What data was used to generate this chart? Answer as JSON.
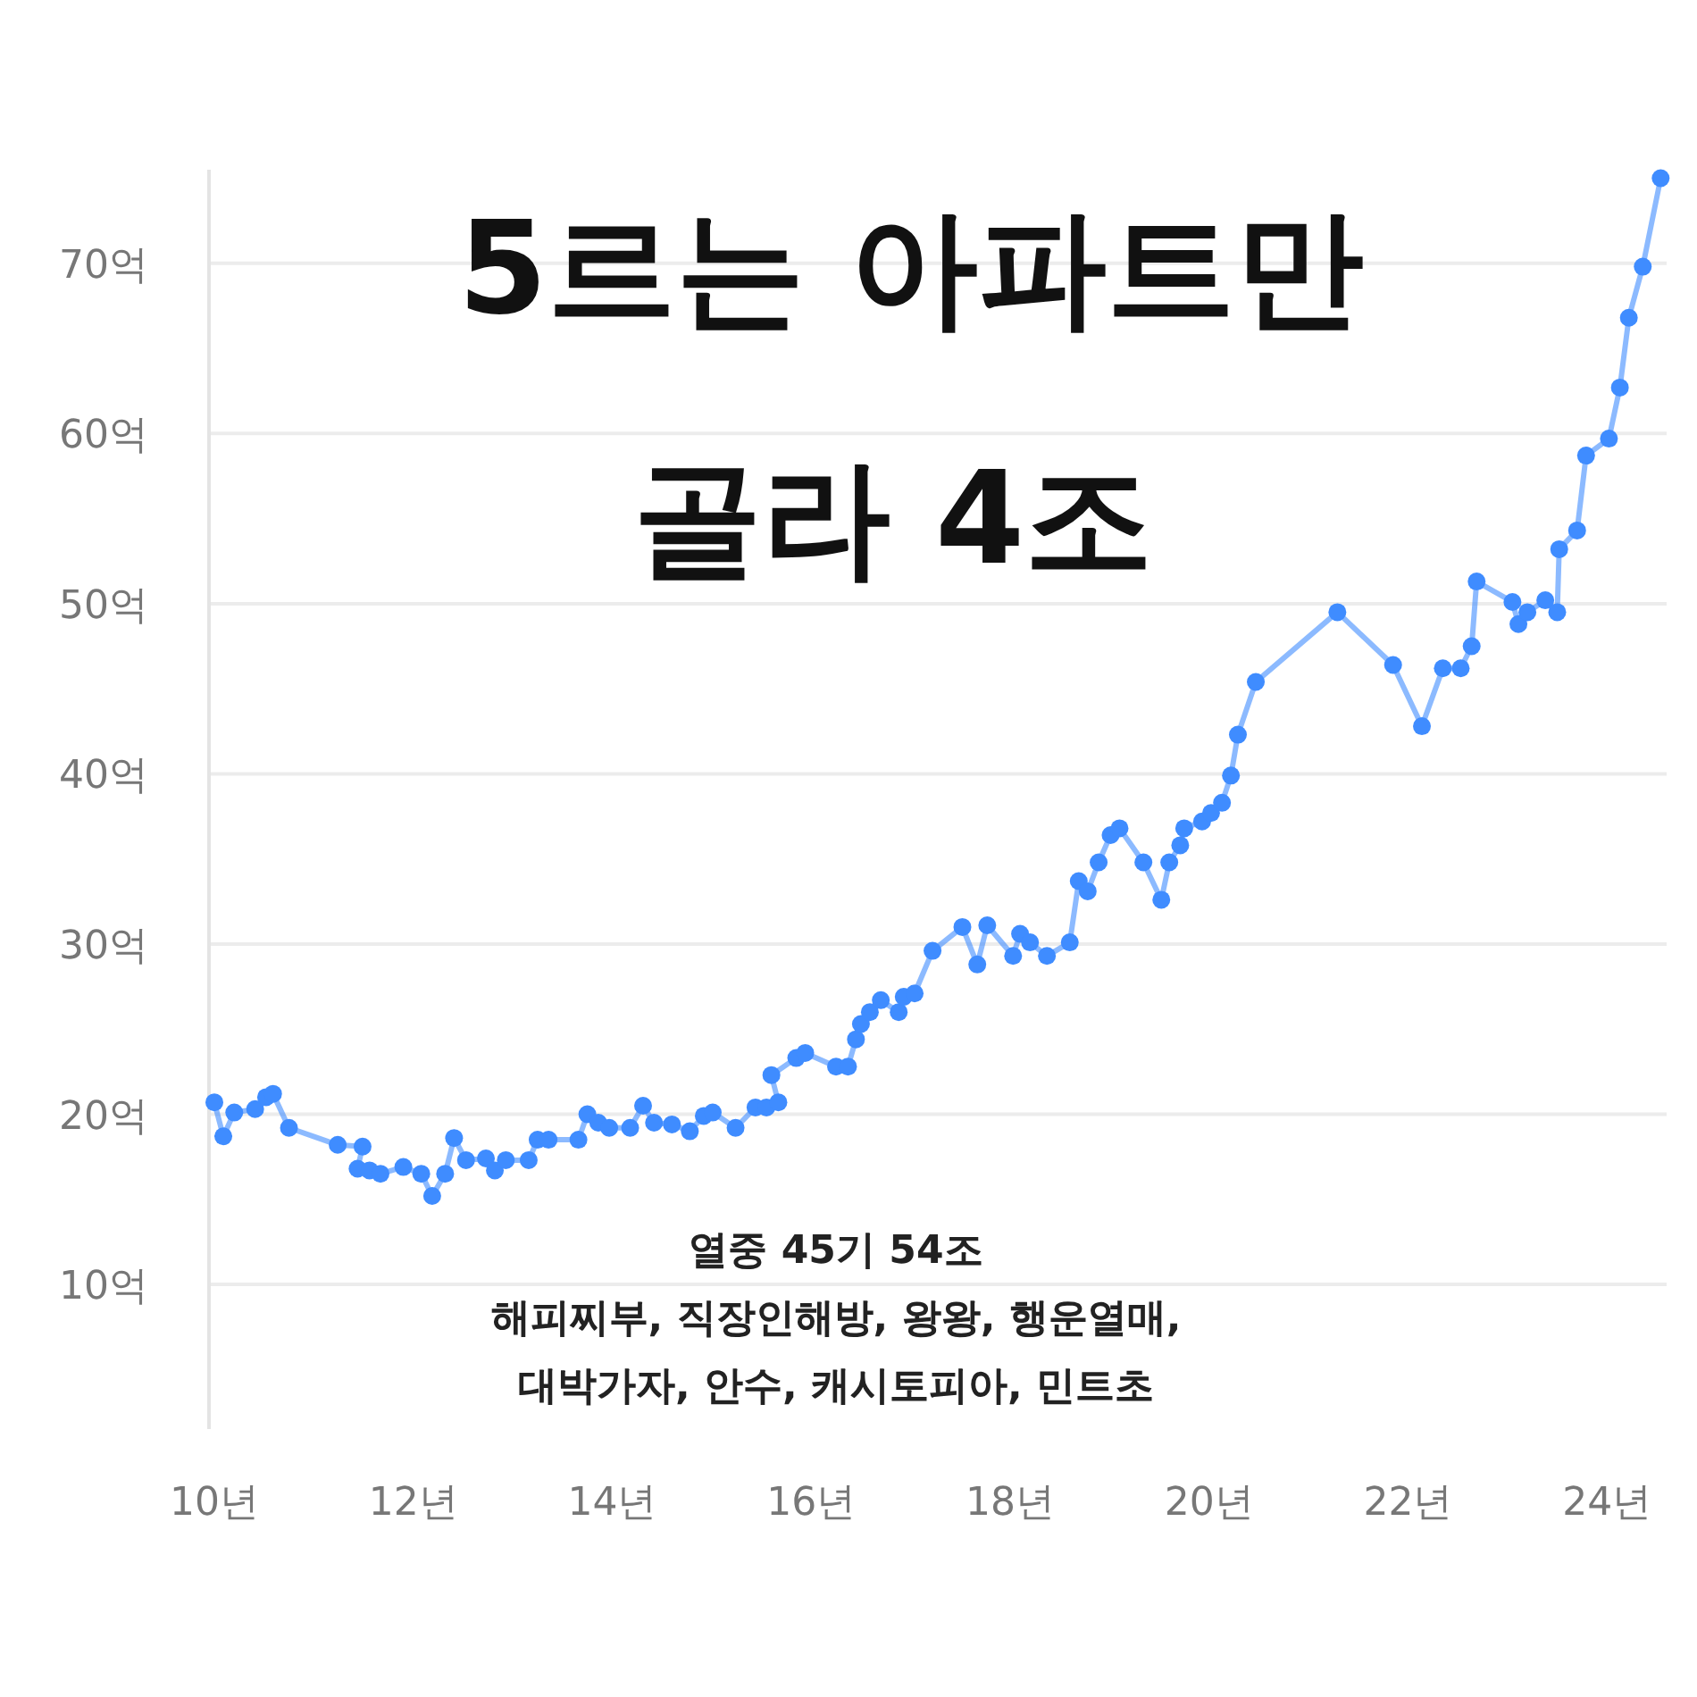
{
  "chart_data": {
    "type": "line",
    "title": "5르는 아파트만",
    "subtitle": "골라 4조",
    "annotations": [
      "열중 45기 54조",
      "해피찌부, 직장인해방, 왕왕, 행운열매,",
      "대박가자, 안수, 캐시토피아, 민트초"
    ],
    "xlim": [
      10,
      24.6
    ],
    "ylim": [
      1.5,
      75.5
    ],
    "xticks": [
      {
        "value": 10,
        "label": "10년"
      },
      {
        "value": 12,
        "label": "12년"
      },
      {
        "value": 14,
        "label": "14년"
      },
      {
        "value": 16,
        "label": "16년"
      },
      {
        "value": 18,
        "label": "18년"
      },
      {
        "value": 20,
        "label": "20년"
      },
      {
        "value": 22,
        "label": "22년"
      },
      {
        "value": 24,
        "label": "24년"
      }
    ],
    "yticks": [
      {
        "value": 10,
        "label": "10억"
      },
      {
        "value": 20,
        "label": "20억"
      },
      {
        "value": 30,
        "label": "30억"
      },
      {
        "value": 40,
        "label": "40억"
      },
      {
        "value": 50,
        "label": "50억"
      },
      {
        "value": 60,
        "label": "60억"
      },
      {
        "value": 70,
        "label": "70억"
      }
    ],
    "grid": "y",
    "marker": "circle",
    "line_style": "solid",
    "series": [
      {
        "color": "#3f8cff",
        "x": [
          10.0,
          10.09,
          10.2,
          10.41,
          10.52,
          10.59,
          10.75,
          11.24,
          11.49,
          11.44,
          11.56,
          11.67,
          11.9,
          12.08,
          12.19,
          12.32,
          12.41,
          12.53,
          12.73,
          12.82,
          12.93,
          13.16,
          13.25,
          13.36,
          13.66,
          13.75,
          13.86,
          13.97,
          14.18,
          14.31,
          14.42,
          14.6,
          14.78,
          14.92,
          15.01,
          15.24,
          15.44,
          15.55,
          15.67,
          15.6,
          15.85,
          15.94,
          16.25,
          16.37,
          16.45,
          16.5,
          16.59,
          16.7,
          16.88,
          16.93,
          17.04,
          17.22,
          17.52,
          17.67,
          17.77,
          18.03,
          18.1,
          18.2,
          18.37,
          18.6,
          18.69,
          18.78,
          18.89,
          19.01,
          19.1,
          19.34,
          19.52,
          19.6,
          19.71,
          19.75,
          19.93,
          20.02,
          20.13,
          20.22,
          20.29,
          20.47,
          21.29,
          21.85,
          22.14,
          22.35,
          22.53,
          22.64,
          22.69,
          23.05,
          23.11,
          23.2,
          23.38,
          23.5,
          23.52,
          23.7,
          23.79,
          24.02,
          24.13,
          24.22,
          24.36,
          24.54
        ],
        "values": [
          20.7,
          18.7,
          20.1,
          20.3,
          21.0,
          21.2,
          19.2,
          18.2,
          18.1,
          16.8,
          16.7,
          16.5,
          16.9,
          16.5,
          15.2,
          16.5,
          18.6,
          17.3,
          17.4,
          16.7,
          17.3,
          17.3,
          18.5,
          18.5,
          18.5,
          20.0,
          19.5,
          19.2,
          19.2,
          20.5,
          19.5,
          19.4,
          19.0,
          19.9,
          20.1,
          19.2,
          20.4,
          20.4,
          20.7,
          22.3,
          23.3,
          23.6,
          22.8,
          22.8,
          24.4,
          25.3,
          26.0,
          26.7,
          26.0,
          26.9,
          27.1,
          29.6,
          31.0,
          28.8,
          31.1,
          29.3,
          30.6,
          30.1,
          29.3,
          30.1,
          33.7,
          33.1,
          34.8,
          36.4,
          36.8,
          34.8,
          32.6,
          34.8,
          35.8,
          36.8,
          37.2,
          37.7,
          38.3,
          39.9,
          42.3,
          45.4,
          49.5,
          46.4,
          42.8,
          46.2,
          46.2,
          47.5,
          51.3,
          50.1,
          48.8,
          49.5,
          50.2,
          49.5,
          53.2,
          54.3,
          58.7,
          59.7,
          62.7,
          66.8,
          69.8,
          75.0
        ]
      }
    ]
  }
}
